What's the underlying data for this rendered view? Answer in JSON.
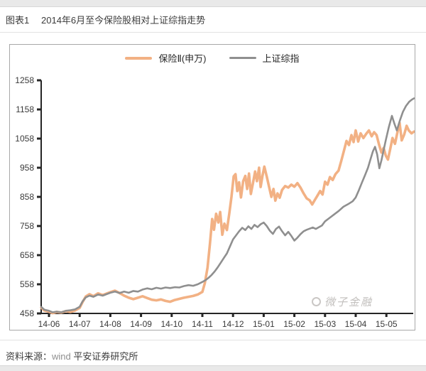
{
  "page": {
    "figure_label": "图表1",
    "title": "2014年6月至今保险股相对上证综指走势",
    "watermark": "微子金融",
    "source": {
      "prefix": "资料来源：",
      "vendor": "wind ",
      "institution": "平安证券研究所"
    }
  },
  "colors": {
    "insurance_line": "#F2B184",
    "index_line": "#8F8F8F",
    "axis": "#262626",
    "tick_text": "#3a3a3a",
    "box_border": "#a8a8a8"
  },
  "chart_data": {
    "type": "line",
    "title": "2014年6月至今保险股相对上证综指走势",
    "xlabel": "",
    "ylabel": "",
    "x_unit": "months since 2014-06",
    "x_tick_labels": [
      "14-06",
      "14-07",
      "14-08",
      "14-09",
      "14-10",
      "14-11",
      "14-12",
      "15-01",
      "15-02",
      "15-03",
      "15-04",
      "15-05"
    ],
    "y_ticks": [
      458,
      558,
      658,
      758,
      858,
      958,
      1058,
      1158,
      1258
    ],
    "ylim": [
      458,
      1258
    ],
    "grid": false,
    "legend_position": "top-center",
    "series": [
      {
        "name": "保险Ⅱ(申万)",
        "color": "#F2B184",
        "points": [
          [
            -0.25,
            478
          ],
          [
            -0.15,
            468
          ],
          [
            0,
            464
          ],
          [
            0.12,
            459
          ],
          [
            0.25,
            463
          ],
          [
            0.4,
            461
          ],
          [
            0.55,
            466
          ],
          [
            0.7,
            463
          ],
          [
            0.85,
            468
          ],
          [
            1.0,
            477
          ],
          [
            1.1,
            498
          ],
          [
            1.2,
            516
          ],
          [
            1.32,
            524
          ],
          [
            1.45,
            517
          ],
          [
            1.6,
            527
          ],
          [
            1.75,
            521
          ],
          [
            1.9,
            527
          ],
          [
            2.0,
            531
          ],
          [
            2.15,
            536
          ],
          [
            2.3,
            528
          ],
          [
            2.45,
            519
          ],
          [
            2.6,
            512
          ],
          [
            2.75,
            507
          ],
          [
            2.9,
            512
          ],
          [
            3.05,
            517
          ],
          [
            3.2,
            511
          ],
          [
            3.35,
            505
          ],
          [
            3.5,
            503
          ],
          [
            3.65,
            506
          ],
          [
            3.8,
            501
          ],
          [
            3.95,
            498
          ],
          [
            4.1,
            504
          ],
          [
            4.25,
            508
          ],
          [
            4.4,
            512
          ],
          [
            4.55,
            515
          ],
          [
            4.7,
            518
          ],
          [
            4.85,
            523
          ],
          [
            5.0,
            532
          ],
          [
            5.08,
            562
          ],
          [
            5.17,
            615
          ],
          [
            5.25,
            700
          ],
          [
            5.32,
            782
          ],
          [
            5.38,
            745
          ],
          [
            5.45,
            800
          ],
          [
            5.52,
            770
          ],
          [
            5.58,
            806
          ],
          [
            5.65,
            728
          ],
          [
            5.72,
            766
          ],
          [
            5.8,
            744
          ],
          [
            5.88,
            802
          ],
          [
            5.95,
            858
          ],
          [
            6.02,
            928
          ],
          [
            6.08,
            936
          ],
          [
            6.14,
            878
          ],
          [
            6.2,
            908
          ],
          [
            6.26,
            856
          ],
          [
            6.33,
            912
          ],
          [
            6.4,
            930
          ],
          [
            6.46,
            885
          ],
          [
            6.52,
            938
          ],
          [
            6.58,
            868
          ],
          [
            6.65,
            905
          ],
          [
            6.72,
            945
          ],
          [
            6.78,
            912
          ],
          [
            6.85,
            958
          ],
          [
            6.9,
            892
          ],
          [
            6.96,
            930
          ],
          [
            7.02,
            962
          ],
          [
            7.1,
            928
          ],
          [
            7.18,
            890
          ],
          [
            7.25,
            858
          ],
          [
            7.32,
            885
          ],
          [
            7.38,
            845
          ],
          [
            7.45,
            870
          ],
          [
            7.52,
            855
          ],
          [
            7.6,
            882
          ],
          [
            7.7,
            895
          ],
          [
            7.8,
            890
          ],
          [
            7.9,
            900
          ],
          [
            8.0,
            893
          ],
          [
            8.1,
            905
          ],
          [
            8.2,
            890
          ],
          [
            8.3,
            870
          ],
          [
            8.4,
            853
          ],
          [
            8.5,
            846
          ],
          [
            8.58,
            832
          ],
          [
            8.66,
            846
          ],
          [
            8.75,
            862
          ],
          [
            8.84,
            878
          ],
          [
            8.92,
            866
          ],
          [
            9.0,
            910
          ],
          [
            9.08,
            900
          ],
          [
            9.16,
            926
          ],
          [
            9.25,
            916
          ],
          [
            9.34,
            936
          ],
          [
            9.44,
            948
          ],
          [
            9.53,
            982
          ],
          [
            9.62,
            1018
          ],
          [
            9.7,
            1050
          ],
          [
            9.78,
            1036
          ],
          [
            9.86,
            1070
          ],
          [
            9.93,
            1046
          ],
          [
            10.0,
            1086
          ],
          [
            10.08,
            1048
          ],
          [
            10.16,
            1076
          ],
          [
            10.25,
            1060
          ],
          [
            10.34,
            1074
          ],
          [
            10.43,
            1086
          ],
          [
            10.52,
            1066
          ],
          [
            10.6,
            1080
          ],
          [
            10.68,
            1070
          ],
          [
            10.76,
            1038
          ],
          [
            10.84,
            1010
          ],
          [
            10.91,
            1026
          ],
          [
            10.98,
            1000
          ],
          [
            11.05,
            986
          ],
          [
            11.12,
            1020
          ],
          [
            11.2,
            1060
          ],
          [
            11.28,
            1040
          ],
          [
            11.36,
            1080
          ],
          [
            11.43,
            1112
          ],
          [
            11.5,
            1052
          ],
          [
            11.58,
            1072
          ],
          [
            11.66,
            1102
          ],
          [
            11.73,
            1086
          ],
          [
            11.82,
            1076
          ],
          [
            11.9,
            1082
          ]
        ]
      },
      {
        "name": "上证综指",
        "color": "#8F8F8F",
        "points": [
          [
            -0.25,
            480
          ],
          [
            -0.15,
            471
          ],
          [
            0,
            467
          ],
          [
            0.12,
            462
          ],
          [
            0.25,
            464
          ],
          [
            0.4,
            462
          ],
          [
            0.55,
            467
          ],
          [
            0.7,
            469
          ],
          [
            0.85,
            472
          ],
          [
            1.0,
            481
          ],
          [
            1.1,
            500
          ],
          [
            1.2,
            513
          ],
          [
            1.32,
            519
          ],
          [
            1.45,
            515
          ],
          [
            1.6,
            523
          ],
          [
            1.75,
            519
          ],
          [
            1.9,
            525
          ],
          [
            2.0,
            529
          ],
          [
            2.15,
            533
          ],
          [
            2.3,
            528
          ],
          [
            2.45,
            533
          ],
          [
            2.6,
            529
          ],
          [
            2.75,
            535
          ],
          [
            2.9,
            533
          ],
          [
            3.05,
            540
          ],
          [
            3.2,
            544
          ],
          [
            3.35,
            541
          ],
          [
            3.5,
            546
          ],
          [
            3.65,
            543
          ],
          [
            3.8,
            547
          ],
          [
            3.95,
            545
          ],
          [
            4.1,
            548
          ],
          [
            4.25,
            547
          ],
          [
            4.4,
            552
          ],
          [
            4.55,
            555
          ],
          [
            4.7,
            553
          ],
          [
            4.85,
            558
          ],
          [
            5.0,
            566
          ],
          [
            5.1,
            572
          ],
          [
            5.2,
            580
          ],
          [
            5.3,
            590
          ],
          [
            5.4,
            602
          ],
          [
            5.5,
            616
          ],
          [
            5.6,
            632
          ],
          [
            5.7,
            648
          ],
          [
            5.8,
            664
          ],
          [
            5.9,
            688
          ],
          [
            6.0,
            712
          ],
          [
            6.1,
            726
          ],
          [
            6.2,
            740
          ],
          [
            6.3,
            752
          ],
          [
            6.4,
            744
          ],
          [
            6.5,
            757
          ],
          [
            6.6,
            748
          ],
          [
            6.7,
            762
          ],
          [
            6.8,
            754
          ],
          [
            6.9,
            764
          ],
          [
            7.0,
            770
          ],
          [
            7.1,
            758
          ],
          [
            7.2,
            742
          ],
          [
            7.3,
            731
          ],
          [
            7.4,
            748
          ],
          [
            7.5,
            756
          ],
          [
            7.6,
            740
          ],
          [
            7.7,
            726
          ],
          [
            7.8,
            738
          ],
          [
            7.9,
            724
          ],
          [
            8.0,
            708
          ],
          [
            8.1,
            718
          ],
          [
            8.2,
            730
          ],
          [
            8.3,
            740
          ],
          [
            8.4,
            745
          ],
          [
            8.5,
            749
          ],
          [
            8.6,
            753
          ],
          [
            8.7,
            748
          ],
          [
            8.8,
            754
          ],
          [
            8.9,
            760
          ],
          [
            9.0,
            774
          ],
          [
            9.15,
            786
          ],
          [
            9.3,
            798
          ],
          [
            9.45,
            810
          ],
          [
            9.6,
            824
          ],
          [
            9.75,
            833
          ],
          [
            9.9,
            843
          ],
          [
            10.0,
            856
          ],
          [
            10.1,
            880
          ],
          [
            10.2,
            906
          ],
          [
            10.3,
            932
          ],
          [
            10.4,
            958
          ],
          [
            10.48,
            986
          ],
          [
            10.56,
            1014
          ],
          [
            10.63,
            1030
          ],
          [
            10.7,
            1004
          ],
          [
            10.77,
            956
          ],
          [
            10.84,
            984
          ],
          [
            10.91,
            1018
          ],
          [
            10.98,
            1052
          ],
          [
            11.08,
            1098
          ],
          [
            11.18,
            1136
          ],
          [
            11.26,
            1110
          ],
          [
            11.34,
            1086
          ],
          [
            11.44,
            1120
          ],
          [
            11.54,
            1150
          ],
          [
            11.64,
            1170
          ],
          [
            11.74,
            1184
          ],
          [
            11.83,
            1192
          ],
          [
            11.9,
            1196
          ]
        ]
      }
    ]
  }
}
